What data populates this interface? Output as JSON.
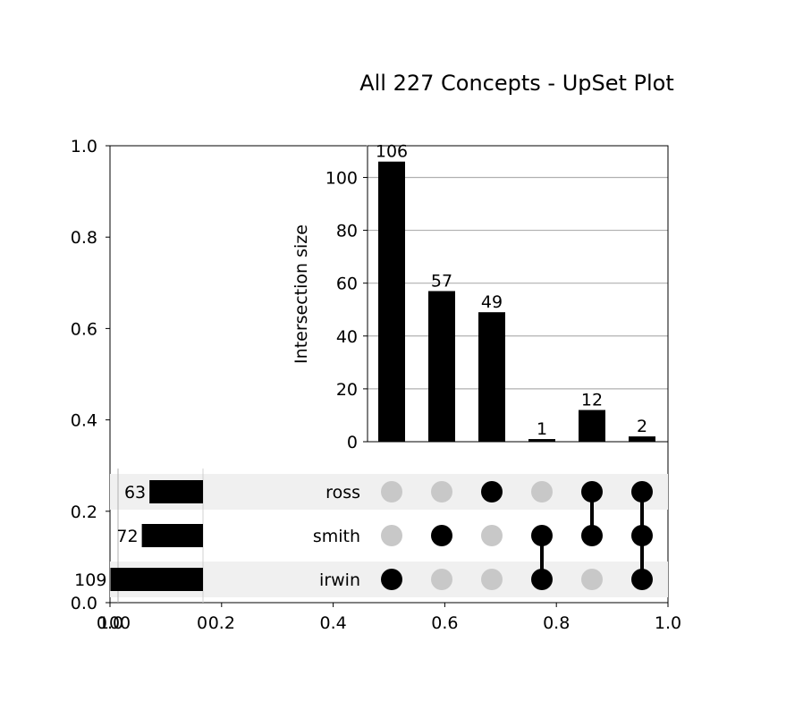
{
  "title": "All 227 Concepts - UpSet Plot",
  "colors": {
    "bar": "#000000",
    "dot_active": "#000000",
    "dot_inactive": "#c8c8c8",
    "stripe": "#f0f0f0",
    "grid": "#b0b0b0"
  },
  "chart_data": [
    {
      "type": "bar",
      "role": "intersection-size",
      "ylabel": "Intersection size",
      "ylim": [
        0,
        112
      ],
      "yticks": [
        0,
        20,
        40,
        60,
        80,
        100
      ],
      "grid": "horizontal",
      "values": [
        106,
        57,
        49,
        1,
        12,
        2
      ],
      "value_labels": [
        "106",
        "57",
        "49",
        "1",
        "12",
        "2"
      ]
    },
    {
      "type": "table",
      "role": "membership-matrix",
      "sets": [
        "ross",
        "smith",
        "irwin"
      ],
      "membership": [
        [
          "irwin"
        ],
        [
          "smith"
        ],
        [
          "ross"
        ],
        [
          "smith",
          "irwin"
        ],
        [
          "ross",
          "smith"
        ],
        [
          "ross",
          "smith",
          "irwin"
        ]
      ]
    },
    {
      "type": "bar",
      "role": "set-size",
      "orientation": "horizontal",
      "sets": [
        "ross",
        "smith",
        "irwin"
      ],
      "values": [
        63,
        72,
        109
      ],
      "value_labels": [
        "63",
        "72",
        "109"
      ]
    },
    {
      "type": "line",
      "role": "background-axes",
      "xlim": [
        0,
        1
      ],
      "ylim": [
        0,
        1
      ],
      "xticks": [
        "0.0",
        "0.2",
        "0.4",
        "0.6",
        "0.8",
        "1.0"
      ],
      "yticks": [
        "0.0",
        "0.2",
        "0.4",
        "0.6",
        "0.8",
        "1.0"
      ],
      "extra_xtick_labels": [
        "100",
        "0"
      ]
    }
  ]
}
